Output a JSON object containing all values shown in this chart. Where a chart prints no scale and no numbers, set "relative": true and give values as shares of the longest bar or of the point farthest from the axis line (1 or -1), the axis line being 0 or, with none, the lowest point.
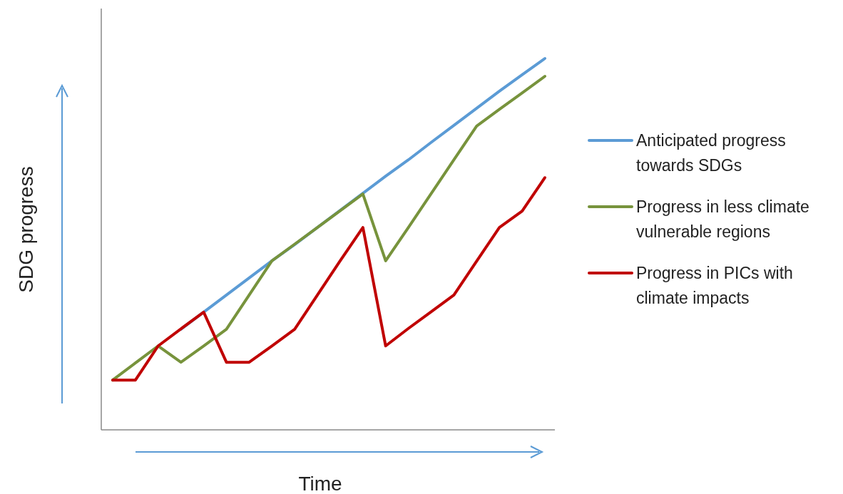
{
  "chart_data": {
    "type": "line",
    "relative": true,
    "xlabel": "Time",
    "ylabel": "SDG progress",
    "legend": "right",
    "marker": "none",
    "line_style": "solid",
    "categories": [
      null,
      null,
      null,
      null,
      null,
      null,
      null,
      null,
      null,
      null,
      null,
      null,
      null,
      null,
      null,
      null,
      null,
      null,
      null,
      null
    ],
    "series": [
      {
        "name": "Anticipated progress towards SDGs",
        "color": "#5b9bd5",
        "values": [
          null,
          null,
          null,
          0.271,
          0.317,
          0.363,
          0.409,
          0.455,
          0.499,
          0.545,
          0.591,
          0.637,
          0.683,
          0.727,
          0.774,
          0.82,
          0.866,
          0.912,
          0.956,
          1.0
        ]
      },
      {
        "name": "Progress in less climate vulnerable regions",
        "color": "#77933c",
        "values": [
          0.134,
          0.18,
          0.226,
          0.182,
          0.226,
          0.271,
          0.363,
          0.455,
          0.5,
          0.545,
          0.59,
          0.635,
          0.455,
          0.545,
          0.636,
          0.727,
          0.818,
          0.863,
          0.907,
          0.952
        ]
      },
      {
        "name": "Progress in PICs with climate impacts",
        "color": "#c00000",
        "values": [
          0.134,
          0.134,
          0.226,
          0.272,
          0.317,
          0.182,
          0.182,
          0.226,
          0.271,
          0.363,
          0.455,
          0.545,
          0.226,
          0.273,
          0.318,
          0.363,
          0.454,
          0.545,
          0.589,
          0.679
        ]
      }
    ]
  }
}
